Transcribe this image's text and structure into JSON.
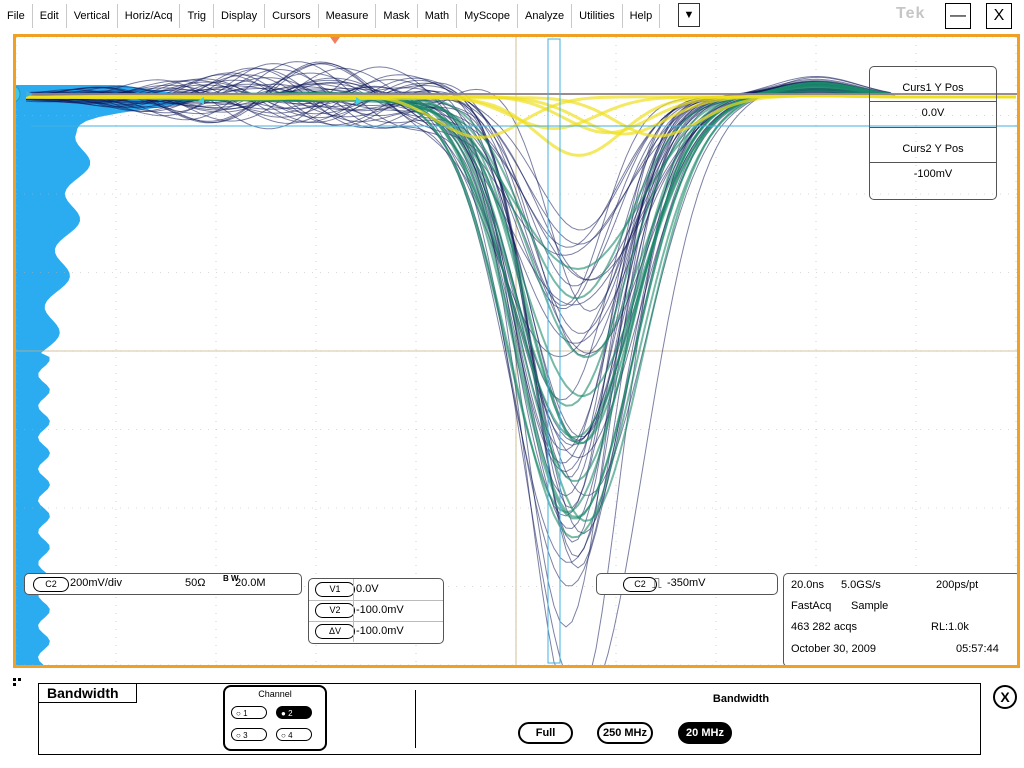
{
  "menu": {
    "items": [
      "File",
      "Edit",
      "Vertical",
      "Horiz/Acq",
      "Trig",
      "Display",
      "Cursors",
      "Measure",
      "Mask",
      "Math",
      "MyScope",
      "Analyze",
      "Utilities",
      "Help"
    ],
    "dropdown_icon": "▼",
    "brand": "Tek",
    "minimize_icon": "—",
    "close_icon": "X"
  },
  "colors": {
    "frame": "#f0a024",
    "histogram": "#20a8f0",
    "trace_low": "#101a5a",
    "trace_mid": "#1a8a6a",
    "trace_high": "#f0e020",
    "trace_max": "#f05020",
    "cursor_line": "#40b0e0",
    "grid": "#b4b4b4"
  },
  "display": {
    "channel_marker": "2",
    "cursor_y_panel": {
      "cursor1_label": "Curs1 Y Pos",
      "cursor1_value": "0.0V",
      "cursor2_label": "Curs2 Y Pos",
      "cursor2_value": "-100mV"
    }
  },
  "channel_readout": {
    "channel": "C2",
    "scale": "200mV/div",
    "impedance": "50Ω",
    "bw_mark": "B W",
    "bw_limit": "20.0M"
  },
  "cursor_readout": {
    "rows": [
      {
        "label": "V1",
        "value": "0.0V"
      },
      {
        "label": "V2",
        "value": "-100.0mV"
      },
      {
        "label": "ΔV",
        "value": "-100.0mV"
      }
    ]
  },
  "trigger_readout": {
    "source": "C2",
    "edge_icon": "⎍",
    "level": "-350mV"
  },
  "acquisition": {
    "time_div": "20.0ns",
    "sample_rate": "5.0GS/s",
    "resolution": "200ps/pt",
    "mode": "FastAcq",
    "acq_type": "Sample",
    "acqs": "463 282 acqs",
    "record_length": "RL:1.0k",
    "date": "October 30, 2009",
    "time": "05:57:44"
  },
  "control_panel": {
    "tab_title": "Bandwidth",
    "channel_group_title": "Channel",
    "channels": [
      {
        "label": "1",
        "selected": false
      },
      {
        "label": "2",
        "selected": true
      },
      {
        "label": "3",
        "selected": false
      },
      {
        "label": "4",
        "selected": false
      }
    ],
    "bandwidth_label": "Bandwidth",
    "options": [
      {
        "label": "Full",
        "selected": false
      },
      {
        "label": "250 MHz",
        "selected": false
      },
      {
        "label": "20 MHz",
        "selected": true
      }
    ],
    "close_icon": "X"
  }
}
